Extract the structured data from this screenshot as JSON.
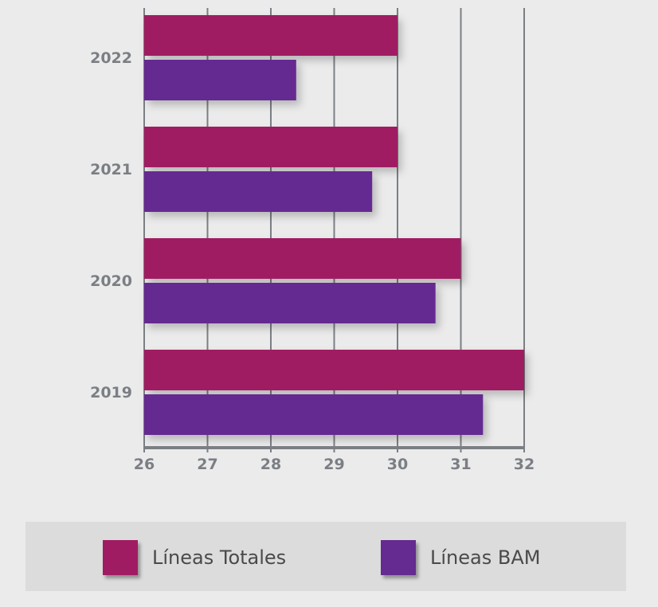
{
  "chart_data": {
    "type": "bar",
    "orientation": "horizontal",
    "categories": [
      "2022",
      "2021",
      "2020",
      "2019"
    ],
    "series": [
      {
        "name": "Líneas Totales",
        "color": "#a01c62",
        "values": [
          30,
          30,
          31,
          32
        ]
      },
      {
        "name": "Líneas BAM",
        "color": "#652b91",
        "values": [
          28.4,
          29.6,
          30.6,
          31.35
        ]
      }
    ],
    "xlim": [
      26,
      32
    ],
    "xticks": [
      "26",
      "27",
      "28",
      "29",
      "30",
      "31",
      "32"
    ],
    "grid": true,
    "legend_position": "bottom",
    "title": "",
    "xlabel": "",
    "ylabel": ""
  },
  "legend": {
    "items": [
      {
        "label": "Líneas Totales",
        "color": "#a01c62"
      },
      {
        "label": "Líneas BAM",
        "color": "#652b91"
      }
    ]
  }
}
